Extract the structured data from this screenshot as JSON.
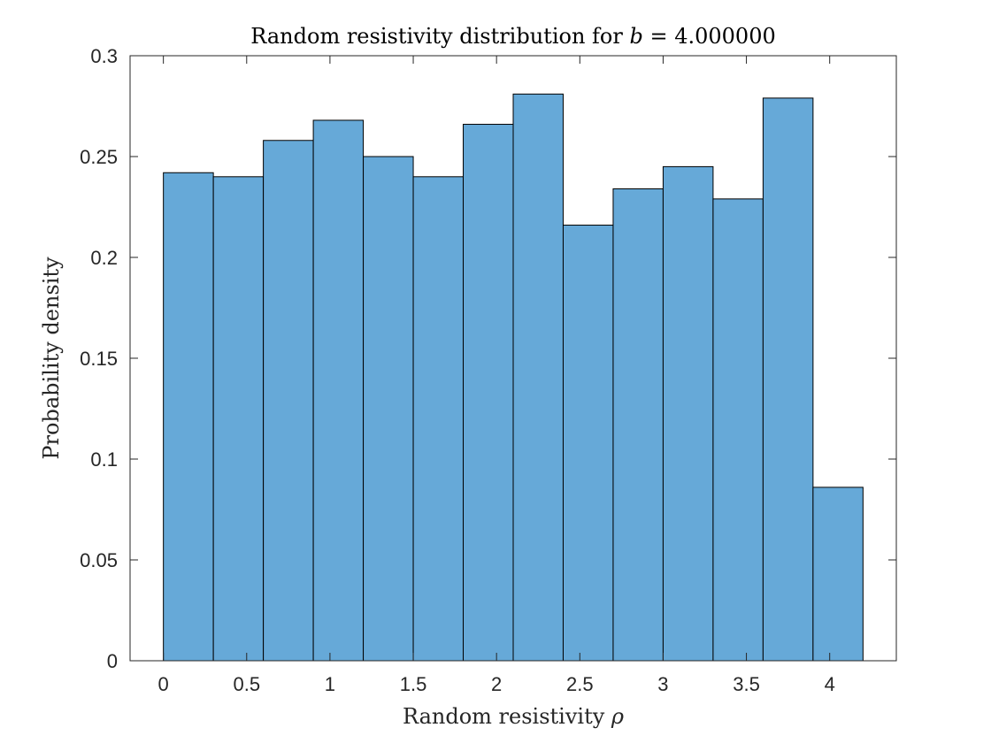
{
  "chart_data": {
    "type": "bar",
    "subtype": "histogram",
    "title_prefix": "Random resistivity distribution for ",
    "title_symbol": "b",
    "title_suffix": " = 4.000000",
    "xlabel_prefix": "Random resistivity ",
    "xlabel_symbol": "ρ",
    "ylabel": "Probability density",
    "xlim": [
      -0.2,
      4.4
    ],
    "ylim": [
      0,
      0.3
    ],
    "xticks": [
      0,
      0.5,
      1,
      1.5,
      2,
      2.5,
      3,
      3.5,
      4
    ],
    "xtick_labels": [
      "0",
      "0.5",
      "1",
      "1.5",
      "2",
      "2.5",
      "3",
      "3.5",
      "4"
    ],
    "yticks": [
      0,
      0.05,
      0.1,
      0.15,
      0.2,
      0.25,
      0.3
    ],
    "ytick_labels": [
      "0",
      "0.05",
      "0.1",
      "0.15",
      "0.2",
      "0.25",
      "0.3"
    ],
    "bin_edges": [
      0,
      0.3,
      0.6,
      0.9,
      1.2,
      1.5,
      1.8,
      2.1,
      2.4,
      2.7,
      3.0,
      3.3,
      3.6,
      3.9,
      4.2
    ],
    "values": [
      0.242,
      0.24,
      0.258,
      0.268,
      0.25,
      0.24,
      0.266,
      0.281,
      0.216,
      0.234,
      0.245,
      0.229,
      0.279,
      0.086
    ],
    "grid": false,
    "legend": "none",
    "colors": {
      "bar_fill": "#66a9d8",
      "bar_edge": "#000000",
      "axes": "#262626"
    }
  }
}
